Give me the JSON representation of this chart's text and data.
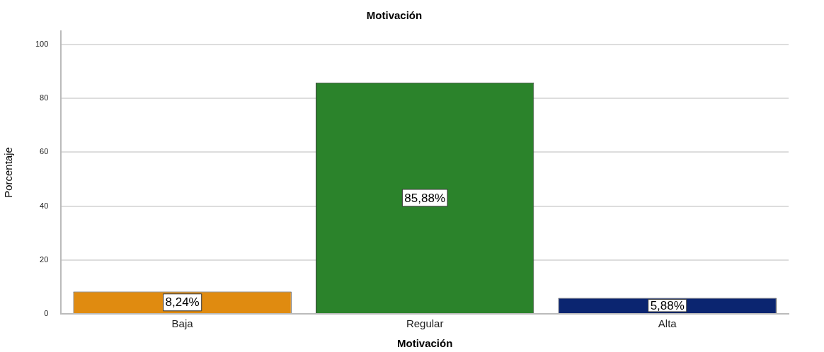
{
  "chart_data": {
    "type": "bar",
    "title": "Motivación",
    "xlabel": "Motivación",
    "ylabel": "Porcentaje",
    "categories": [
      "Baja",
      "Regular",
      "Alta"
    ],
    "values": [
      8.24,
      85.88,
      5.88
    ],
    "colors": [
      "#e08b10",
      "#2b832b",
      "#0b2570"
    ],
    "value_labels": [
      "8,24%",
      "85,88%",
      "5,88%"
    ],
    "ylim": [
      0,
      105
    ],
    "yticks": [
      0,
      20,
      40,
      60,
      80,
      100
    ],
    "grid": "y"
  }
}
